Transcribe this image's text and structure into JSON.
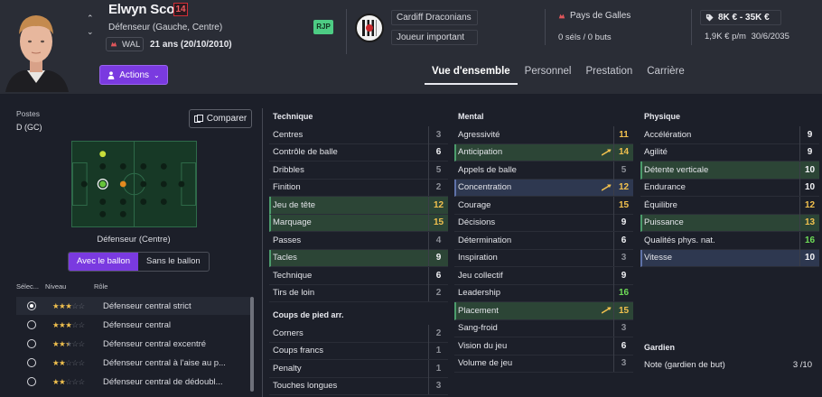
{
  "player": {
    "name": "Elwyn Scott",
    "number": "14",
    "position": "Défenseur (Gauche, Centre)",
    "nationality_code": "WAL",
    "age": "21 ans (20/10/2010)",
    "personality_badge": "RJP"
  },
  "header": {
    "actions_label": "Actions",
    "club_name": "Cardiff Draconians",
    "squad_status": "Joueur important",
    "nation": "Pays de Galles",
    "caps": "0 séls / 0 buts",
    "value": "8K € - 35K €",
    "wage": "1,9K € p/m",
    "contract_end": "30/6/2035",
    "tabs": [
      "Vue d'ensemble",
      "Personnel",
      "Prestation",
      "Carrière"
    ],
    "active_tab": 0
  },
  "left": {
    "positions_label": "Postes",
    "positions_value": "D (GC)",
    "compare_label": "Comparer",
    "pitch_position_label": "Défenseur (Centre)",
    "toggle": [
      "Avec le ballon",
      "Sans le ballon"
    ],
    "role_headers": [
      "Sélec...",
      "Niveau",
      "Rôle"
    ],
    "roles": [
      {
        "name": "Défenseur central strict",
        "stars": 3,
        "selected": true
      },
      {
        "name": "Défenseur central",
        "stars": 3,
        "selected": false
      },
      {
        "name": "Défenseur central excentré",
        "stars": 2.5,
        "selected": false
      },
      {
        "name": "Défenseur central à l'aise au p...",
        "stars": 2,
        "selected": false
      },
      {
        "name": "Défenseur central de dédoubl...",
        "stars": 2,
        "selected": false
      }
    ]
  },
  "technique": {
    "title": "Technique",
    "attrs": [
      {
        "name": "Centres",
        "value": "3"
      },
      {
        "name": "Contrôle de balle",
        "value": "6"
      },
      {
        "name": "Dribbles",
        "value": "5"
      },
      {
        "name": "Finition",
        "value": "2"
      },
      {
        "name": "Jeu de tête",
        "value": "12"
      },
      {
        "name": "Marquage",
        "value": "15"
      },
      {
        "name": "Passes",
        "value": "4"
      },
      {
        "name": "Tacles",
        "value": "9"
      },
      {
        "name": "Technique",
        "value": "6"
      },
      {
        "name": "Tirs de loin",
        "value": "2"
      }
    ],
    "setpieces_title": "Coups de pied arr.",
    "setpieces": [
      {
        "name": "Corners",
        "value": "2"
      },
      {
        "name": "Coups francs",
        "value": "1"
      },
      {
        "name": "Penalty",
        "value": "1"
      },
      {
        "name": "Touches longues",
        "value": "3"
      }
    ]
  },
  "mental": {
    "title": "Mental",
    "attrs": [
      {
        "name": "Agressivité",
        "value": "11"
      },
      {
        "name": "Anticipation",
        "value": "14"
      },
      {
        "name": "Appels de balle",
        "value": "5"
      },
      {
        "name": "Concentration",
        "value": "12"
      },
      {
        "name": "Courage",
        "value": "15"
      },
      {
        "name": "Décisions",
        "value": "9"
      },
      {
        "name": "Détermination",
        "value": "6"
      },
      {
        "name": "Inspiration",
        "value": "3"
      },
      {
        "name": "Jeu collectif",
        "value": "9"
      },
      {
        "name": "Leadership",
        "value": "16"
      },
      {
        "name": "Placement",
        "value": "15"
      },
      {
        "name": "Sang-froid",
        "value": "3"
      },
      {
        "name": "Vision du jeu",
        "value": "6"
      },
      {
        "name": "Volume de jeu",
        "value": "3"
      }
    ]
  },
  "physique": {
    "title": "Physique",
    "attrs": [
      {
        "name": "Accélération",
        "value": "9"
      },
      {
        "name": "Agilité",
        "value": "9"
      },
      {
        "name": "Détente verticale",
        "value": "10"
      },
      {
        "name": "Endurance",
        "value": "10"
      },
      {
        "name": "Équilibre",
        "value": "12"
      },
      {
        "name": "Puissance",
        "value": "13"
      },
      {
        "name": "Qualités phys. nat.",
        "value": "16"
      },
      {
        "name": "Vitesse",
        "value": "10"
      }
    ],
    "keeper_title": "Gardien",
    "keeper_attr": {
      "name": "Note (gardien de but)",
      "value": "3 /10"
    }
  },
  "colors": {
    "accent_purple": "#7a3ae0",
    "value_yellow": "#f2c14e",
    "value_green": "#6fdc58",
    "highlight_green": "#2c4536",
    "highlight_blue": "#2e3850"
  }
}
